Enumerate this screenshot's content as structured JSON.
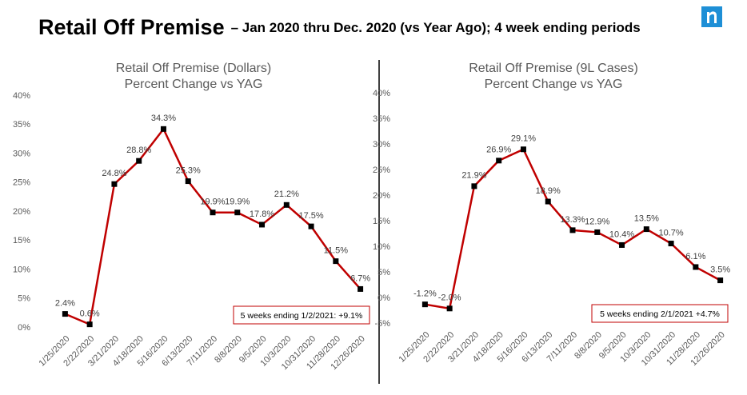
{
  "header": {
    "title": "Retail Off Premise",
    "subtitle": "– Jan 2020 thru Dec. 2020 (vs Year Ago); 4 week ending periods"
  },
  "chart_data": [
    {
      "type": "line",
      "title": "Retail Off Premise (Dollars)",
      "subtitle": "Percent Change vs YAG",
      "categories": [
        "1/25/2020",
        "2/22/2020",
        "3/21/2020",
        "4/18/2020",
        "5/16/2020",
        "6/13/2020",
        "7/11/2020",
        "8/8/2020",
        "9/5/2020",
        "10/3/2020",
        "10/31/2020",
        "11/28/2020",
        "12/26/2020"
      ],
      "series": [
        {
          "name": "Dollars",
          "color": "#c00000",
          "values": [
            2.4,
            0.6,
            24.8,
            28.8,
            34.3,
            25.3,
            19.9,
            19.9,
            17.8,
            21.2,
            17.5,
            11.5,
            6.7
          ],
          "value_labels": [
            "2.4%",
            "0.6%",
            "24.8%",
            "28.8%",
            "34.3%",
            "25.3%",
            "19.9%",
            "19.9%",
            "17.8%",
            "21.2%",
            "17.5%",
            "11.5%",
            "6.7%"
          ]
        }
      ],
      "ylim": [
        0,
        40
      ],
      "yticks": [
        {
          "value": 0,
          "label": "0%"
        },
        {
          "value": 5,
          "label": "5%"
        },
        {
          "value": 10,
          "label": "10%"
        },
        {
          "value": 15,
          "label": "15%"
        },
        {
          "value": 20,
          "label": "20%"
        },
        {
          "value": 25,
          "label": "25%"
        },
        {
          "value": 30,
          "label": "30%"
        },
        {
          "value": 35,
          "label": "35%"
        },
        {
          "value": 40,
          "label": "40%"
        }
      ],
      "annotation": "5 weeks ending 1/2/2021: +9.1%"
    },
    {
      "type": "line",
      "title": "Retail Off Premise (9L Cases)",
      "subtitle": "Percent Change vs YAG",
      "categories": [
        "1/25/2020",
        "2/22/2020",
        "3/21/2020",
        "4/18/2020",
        "5/16/2020",
        "6/13/2020",
        "7/11/2020",
        "8/8/2020",
        "9/5/2020",
        "10/3/2020",
        "10/31/2020",
        "11/28/2020",
        "12/26/2020"
      ],
      "series": [
        {
          "name": "9L Cases",
          "color": "#c00000",
          "values": [
            -1.2,
            -2.0,
            21.9,
            26.9,
            29.1,
            18.9,
            13.3,
            12.9,
            10.4,
            13.5,
            10.7,
            6.1,
            3.5
          ],
          "value_labels": [
            "-1.2%",
            "-2.0%",
            "21.9%",
            "26.9%",
            "29.1%",
            "18.9%",
            "13.3%",
            "12.9%",
            "10.4%",
            "13.5%",
            "10.7%",
            "6.1%",
            "3.5%"
          ]
        }
      ],
      "ylim": [
        -5,
        40
      ],
      "yticks": [
        {
          "value": -5,
          "label": "-5%"
        },
        {
          "value": 0,
          "label": "0%"
        },
        {
          "value": 5,
          "label": "5%"
        },
        {
          "value": 10,
          "label": "10%"
        },
        {
          "value": 15,
          "label": "15%"
        },
        {
          "value": 20,
          "label": "20%"
        },
        {
          "value": 25,
          "label": "25%"
        },
        {
          "value": 30,
          "label": "30%"
        },
        {
          "value": 35,
          "label": "35%"
        },
        {
          "value": 40,
          "label": "40%"
        }
      ],
      "annotation": "5 weeks ending 2/1/2021 +4.7%"
    }
  ]
}
